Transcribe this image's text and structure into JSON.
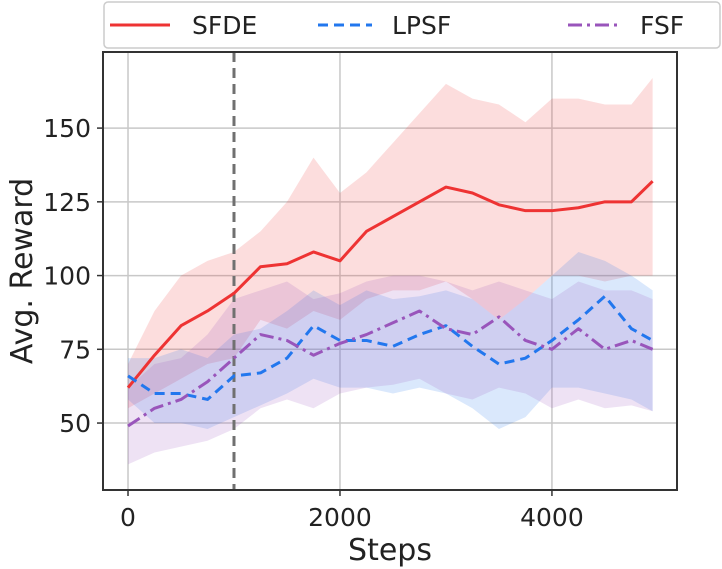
{
  "chart_data": {
    "type": "line",
    "title": "",
    "xlabel": "Steps",
    "ylabel": "Avg. Reward",
    "xlim": [
      -236,
      5180
    ],
    "ylim": [
      27.3,
      175.8
    ],
    "xticks": [
      0,
      2000,
      4000
    ],
    "xtick_labels": [
      "0",
      "2000",
      "4000"
    ],
    "yticks": [
      50,
      75,
      100,
      125,
      150
    ],
    "ytick_labels": [
      "50",
      "75",
      "100",
      "125",
      "150"
    ],
    "grid": true,
    "legend_position": "top (outside)",
    "vline": {
      "x": 1000,
      "style": "dashed",
      "color": "#707070"
    },
    "x": [
      0,
      250,
      500,
      750,
      1000,
      1250,
      1500,
      1750,
      2000,
      2250,
      2500,
      2750,
      3000,
      3250,
      3500,
      3750,
      4000,
      4250,
      4500,
      4750,
      4950
    ],
    "series": [
      {
        "name": "SFDE",
        "color": "#ee3333",
        "dash": "solid",
        "values": [
          62,
          73,
          83,
          88,
          94,
          103,
          104,
          108,
          105,
          115,
          120,
          125,
          130,
          128,
          124,
          122,
          122,
          123,
          125,
          125,
          132
        ],
        "upper": [
          70,
          88,
          100,
          105,
          108,
          115,
          125,
          140,
          128,
          135,
          145,
          155,
          165,
          160,
          158,
          152,
          160,
          160,
          158,
          158,
          167
        ],
        "lower": [
          55,
          60,
          65,
          70,
          72,
          85,
          82,
          88,
          85,
          92,
          95,
          95,
          98,
          92,
          85,
          92,
          100,
          100,
          98,
          100,
          100
        ]
      },
      {
        "name": "LPSF",
        "color": "#2277ee",
        "dash": "dashed",
        "values": [
          66,
          60,
          60,
          58,
          66,
          67,
          72,
          83,
          78,
          78,
          76,
          80,
          83,
          76,
          70,
          72,
          78,
          85,
          93,
          82,
          78
        ],
        "upper": [
          72,
          72,
          75,
          72,
          80,
          82,
          88,
          95,
          90,
          95,
          92,
          93,
          95,
          92,
          85,
          92,
          100,
          108,
          105,
          100,
          95
        ],
        "lower": [
          58,
          50,
          50,
          48,
          52,
          56,
          60,
          65,
          62,
          62,
          60,
          62,
          60,
          55,
          48,
          52,
          62,
          62,
          60,
          58,
          54
        ]
      },
      {
        "name": "FSF",
        "color": "#9955bb",
        "dash": "dashdot",
        "values": [
          49,
          55,
          58,
          64,
          72,
          80,
          78,
          73,
          77,
          80,
          84,
          88,
          82,
          80,
          86,
          78,
          75,
          82,
          75,
          78,
          75
        ],
        "upper": [
          62,
          70,
          72,
          80,
          92,
          95,
          98,
          92,
          94,
          98,
          100,
          100,
          98,
          95,
          98,
          95,
          92,
          98,
          95,
          95,
          92
        ],
        "lower": [
          36,
          40,
          42,
          44,
          48,
          55,
          58,
          55,
          60,
          62,
          63,
          65,
          60,
          58,
          62,
          60,
          55,
          58,
          55,
          56,
          54
        ]
      }
    ]
  }
}
